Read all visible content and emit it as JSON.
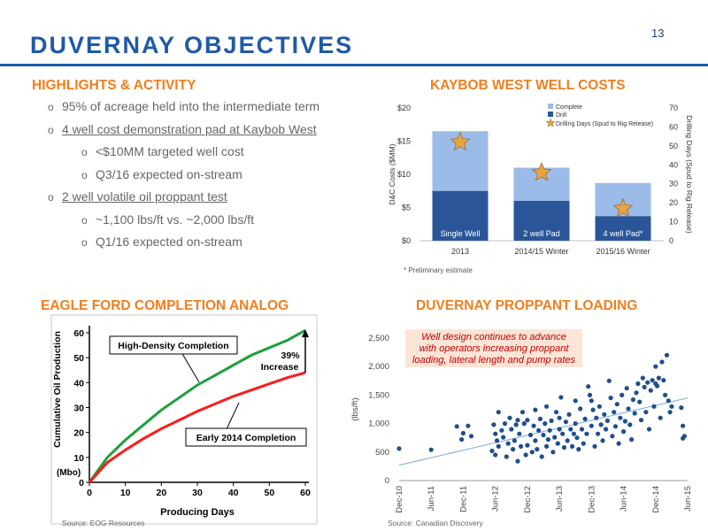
{
  "page_number": "13",
  "title": "DUVERNAY OBJECTIVES",
  "highlights": {
    "heading": "HIGHLIGHTS & ACTIVITY",
    "items": [
      {
        "level": 1,
        "text": "95% of acreage held into the intermediate term"
      },
      {
        "level": 1,
        "text": "4 well cost demonstration pad at Kaybob West",
        "underline": true
      },
      {
        "level": 2,
        "text": "<$10MM targeted well cost"
      },
      {
        "level": 2,
        "text": "Q3/16 expected on-stream"
      },
      {
        "level": 1,
        "text": "2 well volatile oil proppant test",
        "underline": true
      },
      {
        "level": 2,
        "text": "~1,100 lbs/ft vs. ~2,000 lbs/ft"
      },
      {
        "level": 2,
        "text": "Q1/16 expected on-stream"
      }
    ]
  },
  "colors": {
    "title": "#1f5aa6",
    "heading": "#f07f1e",
    "complete": "#9bbbe8",
    "drill": "#2a5699",
    "star": "#e8a33c",
    "early": "#ff1a1a",
    "high": "#1aa03a",
    "scatter": "#1f4e8c",
    "trend": "#7aa7d6"
  },
  "chart_data": [
    {
      "type": "bar",
      "title": "KAYBOB WEST WELL COSTS",
      "categories": [
        "2013",
        "2014/15 Winter",
        "2015/16 Winter"
      ],
      "bar_labels": [
        "Single Well",
        "2 well Pad",
        "4 well Pad*"
      ],
      "series": [
        {
          "name": "Complete",
          "values": [
            9.0,
            5.0,
            5.0
          ]
        },
        {
          "name": "Drill",
          "values": [
            7.5,
            6.0,
            3.7
          ]
        },
        {
          "name": "Drilling Days (Spud to Rig Release)",
          "axis": "right",
          "values": [
            52,
            36,
            17
          ]
        }
      ],
      "ylabel": "D&C Costs ($MM)",
      "y_ticks": [
        "$0",
        "$5",
        "$10",
        "$15",
        "$20"
      ],
      "ylim": [
        0,
        20
      ],
      "y2label": "Drilling Days (Spud to Rig Release)",
      "y2_ticks": [
        "0",
        "10",
        "20",
        "30",
        "40",
        "50",
        "60",
        "70"
      ],
      "y2lim": [
        0,
        70
      ],
      "legend": "top-right",
      "footnote": "* Preliminary estimate"
    },
    {
      "type": "line",
      "title": "EAGLE FORD COMPLETION ANALOG",
      "xlabel": "Producing Days",
      "ylabel": "Cumulative Oil Production",
      "yunit": "(Mbo)",
      "x_ticks": [
        "0",
        "10",
        "20",
        "30",
        "40",
        "50",
        "60"
      ],
      "y_ticks": [
        "0",
        "10",
        "20",
        "30",
        "40",
        "50",
        "60"
      ],
      "xlim": [
        0,
        60
      ],
      "ylim": [
        0,
        65
      ],
      "series": [
        {
          "name": "High-Density Completion",
          "x": [
            0,
            5,
            10,
            15,
            20,
            25,
            30,
            35,
            40,
            45,
            50,
            55,
            60
          ],
          "y": [
            0,
            10,
            17,
            23,
            29,
            34,
            39,
            43,
            47,
            51,
            54,
            57,
            61
          ]
        },
        {
          "name": "Early 2014 Completion",
          "x": [
            0,
            5,
            10,
            15,
            20,
            25,
            30,
            35,
            40,
            45,
            50,
            55,
            60
          ],
          "y": [
            0,
            8,
            13,
            17.5,
            21.5,
            25,
            28.5,
            31.5,
            34.5,
            37,
            39.5,
            42,
            44
          ]
        }
      ],
      "annotation": "39%\nIncrease",
      "source": "Source: EOG Resources"
    },
    {
      "type": "scatter",
      "title": "DUVERNAY PROPPANT LOADING",
      "ylabel": "(lbs/ft)",
      "x_ticks": [
        "Dec-10",
        "Jun-11",
        "Dec-11",
        "Jun-12",
        "Dec-12",
        "Jun-13",
        "Dec-13",
        "Jun-14",
        "Dec-14",
        "Jun-15"
      ],
      "y_ticks": [
        "0",
        "500",
        "1,000",
        "1,500",
        "2,000",
        "2,500"
      ],
      "ylim": [
        0,
        2500
      ],
      "trend": {
        "start": 270,
        "end": 1450
      },
      "annotation": "Well design continues to advance\nwith operators increasing proppant\nloading, lateral length and pump rates",
      "source": "Source: Canadian Discovery",
      "points": [
        [
          0.0,
          560
        ],
        [
          2.0,
          540
        ],
        [
          3.6,
          950
        ],
        [
          3.9,
          720
        ],
        [
          4.0,
          830
        ],
        [
          4.3,
          960
        ],
        [
          4.5,
          780
        ],
        [
          5.8,
          520
        ],
        [
          5.9,
          980
        ],
        [
          6.0,
          820
        ],
        [
          6.0,
          450
        ],
        [
          6.1,
          700
        ],
        [
          6.2,
          600
        ],
        [
          6.2,
          1200
        ],
        [
          6.4,
          880
        ],
        [
          6.5,
          760
        ],
        [
          6.6,
          1000
        ],
        [
          6.7,
          420
        ],
        [
          6.8,
          650
        ],
        [
          6.9,
          1100
        ],
        [
          7.0,
          900
        ],
        [
          7.1,
          550
        ],
        [
          7.2,
          700
        ],
        [
          7.3,
          980
        ],
        [
          7.4,
          1060
        ],
        [
          7.4,
          340
        ],
        [
          7.5,
          820
        ],
        [
          7.6,
          600
        ],
        [
          7.7,
          1200
        ],
        [
          7.8,
          1000
        ],
        [
          7.9,
          450
        ],
        [
          8.0,
          620
        ],
        [
          8.0,
          1060
        ],
        [
          8.2,
          800
        ],
        [
          8.3,
          500
        ],
        [
          8.4,
          960
        ],
        [
          8.5,
          1240
        ],
        [
          8.5,
          700
        ],
        [
          8.6,
          550
        ],
        [
          8.7,
          880
        ],
        [
          8.8,
          1080
        ],
        [
          8.9,
          420
        ],
        [
          9.0,
          800
        ],
        [
          9.1,
          1000
        ],
        [
          9.2,
          600
        ],
        [
          9.2,
          1300
        ],
        [
          9.3,
          720
        ],
        [
          9.4,
          880
        ],
        [
          9.5,
          1050
        ],
        [
          9.6,
          500
        ],
        [
          9.7,
          760
        ],
        [
          9.8,
          1200
        ],
        [
          9.9,
          650
        ],
        [
          10.0,
          900
        ],
        [
          10.0,
          1100
        ],
        [
          10.1,
          1460
        ],
        [
          10.2,
          820
        ],
        [
          10.3,
          580
        ],
        [
          10.4,
          1030
        ],
        [
          10.5,
          700
        ],
        [
          10.6,
          1160
        ],
        [
          10.7,
          900
        ],
        [
          10.8,
          600
        ],
        [
          10.9,
          820
        ],
        [
          11.0,
          1000
        ],
        [
          11.0,
          1400
        ],
        [
          11.1,
          750
        ],
        [
          11.2,
          550
        ],
        [
          11.3,
          1260
        ],
        [
          11.4,
          900
        ],
        [
          11.5,
          650
        ],
        [
          11.6,
          1080
        ],
        [
          11.7,
          820
        ],
        [
          11.8,
          1650
        ],
        [
          11.9,
          1500
        ],
        [
          12.0,
          1400
        ],
        [
          12.0,
          960
        ],
        [
          12.1,
          1240
        ],
        [
          12.2,
          600
        ],
        [
          12.3,
          1100
        ],
        [
          12.4,
          820
        ],
        [
          12.5,
          1300
        ],
        [
          12.6,
          980
        ],
        [
          12.7,
          700
        ],
        [
          12.8,
          1160
        ],
        [
          12.9,
          900
        ],
        [
          13.0,
          1050
        ],
        [
          13.1,
          1750
        ],
        [
          13.2,
          1450
        ],
        [
          13.3,
          780
        ],
        [
          13.4,
          1200
        ],
        [
          13.5,
          950
        ],
        [
          13.6,
          1340
        ],
        [
          13.7,
          650
        ],
        [
          13.8,
          1100
        ],
        [
          13.9,
          1500
        ],
        [
          14.0,
          860
        ],
        [
          14.1,
          1040
        ],
        [
          14.2,
          1620
        ],
        [
          14.3,
          1260
        ],
        [
          14.4,
          980
        ],
        [
          14.5,
          720
        ],
        [
          14.6,
          1420
        ],
        [
          14.7,
          1180
        ],
        [
          14.8,
          1540
        ],
        [
          14.9,
          1700
        ],
        [
          15.0,
          1380
        ],
        [
          15.1,
          1060
        ],
        [
          15.2,
          1800
        ],
        [
          15.3,
          1640
        ],
        [
          15.4,
          1200
        ],
        [
          15.5,
          1720
        ],
        [
          15.6,
          900
        ],
        [
          15.7,
          1580
        ],
        [
          15.8,
          1760
        ],
        [
          15.9,
          1300
        ],
        [
          16.0,
          1700
        ],
        [
          16.0,
          2000
        ],
        [
          16.1,
          1660
        ],
        [
          16.2,
          1800
        ],
        [
          16.3,
          1100
        ],
        [
          16.4,
          2080
        ],
        [
          16.5,
          1760
        ],
        [
          16.6,
          1500
        ],
        [
          16.7,
          2200
        ],
        [
          16.8,
          1400
        ],
        [
          16.9,
          1200
        ],
        [
          17.0,
          1300
        ],
        [
          17.6,
          1280
        ],
        [
          17.7,
          960
        ],
        [
          17.7,
          740
        ],
        [
          17.8,
          780
        ]
      ]
    }
  ]
}
